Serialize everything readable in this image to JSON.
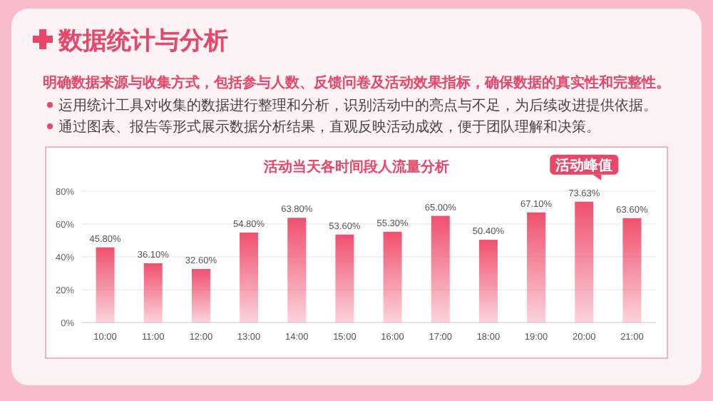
{
  "chart_data": {
    "type": "bar",
    "title": "活动当天各时间段人流量分析",
    "categories": [
      "10:00",
      "11:00",
      "12:00",
      "13:00",
      "14:00",
      "15:00",
      "16:00",
      "17:00",
      "18:00",
      "19:00",
      "20:00",
      "21:00"
    ],
    "values": [
      45.8,
      36.1,
      32.6,
      54.8,
      63.8,
      53.6,
      55.3,
      65.0,
      50.4,
      67.1,
      73.63,
      63.6
    ],
    "value_labels": [
      "45.80%",
      "36.10%",
      "32.60%",
      "54.80%",
      "63.80%",
      "53.60%",
      "55.30%",
      "65.00%",
      "50.40%",
      "67.10%",
      "73.63%",
      "63.60%"
    ],
    "color": "#f0506e",
    "ylim": [
      0,
      80
    ],
    "yticks": [
      {
        "value": 0,
        "label": "0%"
      },
      {
        "value": 20,
        "label": "20%"
      },
      {
        "value": 40,
        "label": "40%"
      },
      {
        "value": 60,
        "label": "60%"
      },
      {
        "value": 80,
        "label": "80%"
      }
    ],
    "grid": "y",
    "annotations": [
      "数据统计与分析",
      "明确数据来源与收集方式，包括参与人数、反馈问卷及活动效果指标，确保数据的真实性和完整性。",
      "运用统计工具对收集的数据进行整理和分析，识别活动中的亮点与不足，为后续改进提供依据。",
      "通过图表、报告等形式展示数据分析结果，直观反映活动成效，便于团队理解和决策。",
      {
        "text": "活动峰值",
        "x": "20:00",
        "y": 73.63
      }
    ]
  }
}
